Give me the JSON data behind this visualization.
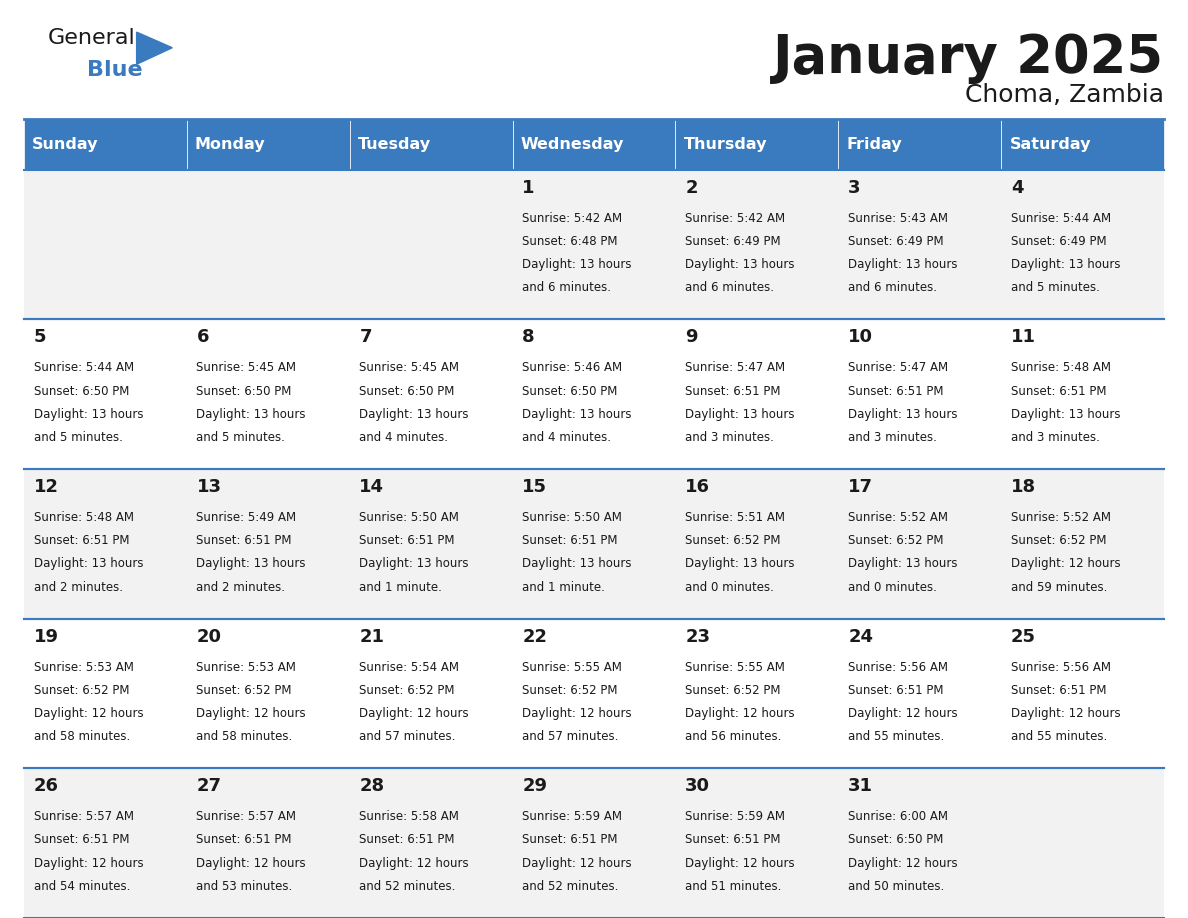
{
  "title": "January 2025",
  "subtitle": "Choma, Zambia",
  "header_color": "#3a7abf",
  "header_text_color": "#ffffff",
  "day_names": [
    "Sunday",
    "Monday",
    "Tuesday",
    "Wednesday",
    "Thursday",
    "Friday",
    "Saturday"
  ],
  "background_color": "#ffffff",
  "cell_bg_even": "#f2f2f2",
  "cell_bg_odd": "#ffffff",
  "row_line_color": "#3a7abf",
  "days": [
    {
      "day": 1,
      "col": 3,
      "row": 0,
      "sunrise": "5:42 AM",
      "sunset": "6:48 PM",
      "daylight": "13 hours and 6 minutes."
    },
    {
      "day": 2,
      "col": 4,
      "row": 0,
      "sunrise": "5:42 AM",
      "sunset": "6:49 PM",
      "daylight": "13 hours and 6 minutes."
    },
    {
      "day": 3,
      "col": 5,
      "row": 0,
      "sunrise": "5:43 AM",
      "sunset": "6:49 PM",
      "daylight": "13 hours and 6 minutes."
    },
    {
      "day": 4,
      "col": 6,
      "row": 0,
      "sunrise": "5:44 AM",
      "sunset": "6:49 PM",
      "daylight": "13 hours and 5 minutes."
    },
    {
      "day": 5,
      "col": 0,
      "row": 1,
      "sunrise": "5:44 AM",
      "sunset": "6:50 PM",
      "daylight": "13 hours and 5 minutes."
    },
    {
      "day": 6,
      "col": 1,
      "row": 1,
      "sunrise": "5:45 AM",
      "sunset": "6:50 PM",
      "daylight": "13 hours and 5 minutes."
    },
    {
      "day": 7,
      "col": 2,
      "row": 1,
      "sunrise": "5:45 AM",
      "sunset": "6:50 PM",
      "daylight": "13 hours and 4 minutes."
    },
    {
      "day": 8,
      "col": 3,
      "row": 1,
      "sunrise": "5:46 AM",
      "sunset": "6:50 PM",
      "daylight": "13 hours and 4 minutes."
    },
    {
      "day": 9,
      "col": 4,
      "row": 1,
      "sunrise": "5:47 AM",
      "sunset": "6:51 PM",
      "daylight": "13 hours and 3 minutes."
    },
    {
      "day": 10,
      "col": 5,
      "row": 1,
      "sunrise": "5:47 AM",
      "sunset": "6:51 PM",
      "daylight": "13 hours and 3 minutes."
    },
    {
      "day": 11,
      "col": 6,
      "row": 1,
      "sunrise": "5:48 AM",
      "sunset": "6:51 PM",
      "daylight": "13 hours and 3 minutes."
    },
    {
      "day": 12,
      "col": 0,
      "row": 2,
      "sunrise": "5:48 AM",
      "sunset": "6:51 PM",
      "daylight": "13 hours and 2 minutes."
    },
    {
      "day": 13,
      "col": 1,
      "row": 2,
      "sunrise": "5:49 AM",
      "sunset": "6:51 PM",
      "daylight": "13 hours and 2 minutes."
    },
    {
      "day": 14,
      "col": 2,
      "row": 2,
      "sunrise": "5:50 AM",
      "sunset": "6:51 PM",
      "daylight": "13 hours and 1 minute."
    },
    {
      "day": 15,
      "col": 3,
      "row": 2,
      "sunrise": "5:50 AM",
      "sunset": "6:51 PM",
      "daylight": "13 hours and 1 minute."
    },
    {
      "day": 16,
      "col": 4,
      "row": 2,
      "sunrise": "5:51 AM",
      "sunset": "6:52 PM",
      "daylight": "13 hours and 0 minutes."
    },
    {
      "day": 17,
      "col": 5,
      "row": 2,
      "sunrise": "5:52 AM",
      "sunset": "6:52 PM",
      "daylight": "13 hours and 0 minutes."
    },
    {
      "day": 18,
      "col": 6,
      "row": 2,
      "sunrise": "5:52 AM",
      "sunset": "6:52 PM",
      "daylight": "12 hours and 59 minutes."
    },
    {
      "day": 19,
      "col": 0,
      "row": 3,
      "sunrise": "5:53 AM",
      "sunset": "6:52 PM",
      "daylight": "12 hours and 58 minutes."
    },
    {
      "day": 20,
      "col": 1,
      "row": 3,
      "sunrise": "5:53 AM",
      "sunset": "6:52 PM",
      "daylight": "12 hours and 58 minutes."
    },
    {
      "day": 21,
      "col": 2,
      "row": 3,
      "sunrise": "5:54 AM",
      "sunset": "6:52 PM",
      "daylight": "12 hours and 57 minutes."
    },
    {
      "day": 22,
      "col": 3,
      "row": 3,
      "sunrise": "5:55 AM",
      "sunset": "6:52 PM",
      "daylight": "12 hours and 57 minutes."
    },
    {
      "day": 23,
      "col": 4,
      "row": 3,
      "sunrise": "5:55 AM",
      "sunset": "6:52 PM",
      "daylight": "12 hours and 56 minutes."
    },
    {
      "day": 24,
      "col": 5,
      "row": 3,
      "sunrise": "5:56 AM",
      "sunset": "6:51 PM",
      "daylight": "12 hours and 55 minutes."
    },
    {
      "day": 25,
      "col": 6,
      "row": 3,
      "sunrise": "5:56 AM",
      "sunset": "6:51 PM",
      "daylight": "12 hours and 55 minutes."
    },
    {
      "day": 26,
      "col": 0,
      "row": 4,
      "sunrise": "5:57 AM",
      "sunset": "6:51 PM",
      "daylight": "12 hours and 54 minutes."
    },
    {
      "day": 27,
      "col": 1,
      "row": 4,
      "sunrise": "5:57 AM",
      "sunset": "6:51 PM",
      "daylight": "12 hours and 53 minutes."
    },
    {
      "day": 28,
      "col": 2,
      "row": 4,
      "sunrise": "5:58 AM",
      "sunset": "6:51 PM",
      "daylight": "12 hours and 52 minutes."
    },
    {
      "day": 29,
      "col": 3,
      "row": 4,
      "sunrise": "5:59 AM",
      "sunset": "6:51 PM",
      "daylight": "12 hours and 52 minutes."
    },
    {
      "day": 30,
      "col": 4,
      "row": 4,
      "sunrise": "5:59 AM",
      "sunset": "6:51 PM",
      "daylight": "12 hours and 51 minutes."
    },
    {
      "day": 31,
      "col": 5,
      "row": 4,
      "sunrise": "6:00 AM",
      "sunset": "6:50 PM",
      "daylight": "12 hours and 50 minutes."
    }
  ],
  "num_rows": 5,
  "logo_text_general": "General",
  "logo_text_blue": "Blue",
  "logo_color_general": "#1a1a1a",
  "logo_color_blue": "#3a7abf"
}
